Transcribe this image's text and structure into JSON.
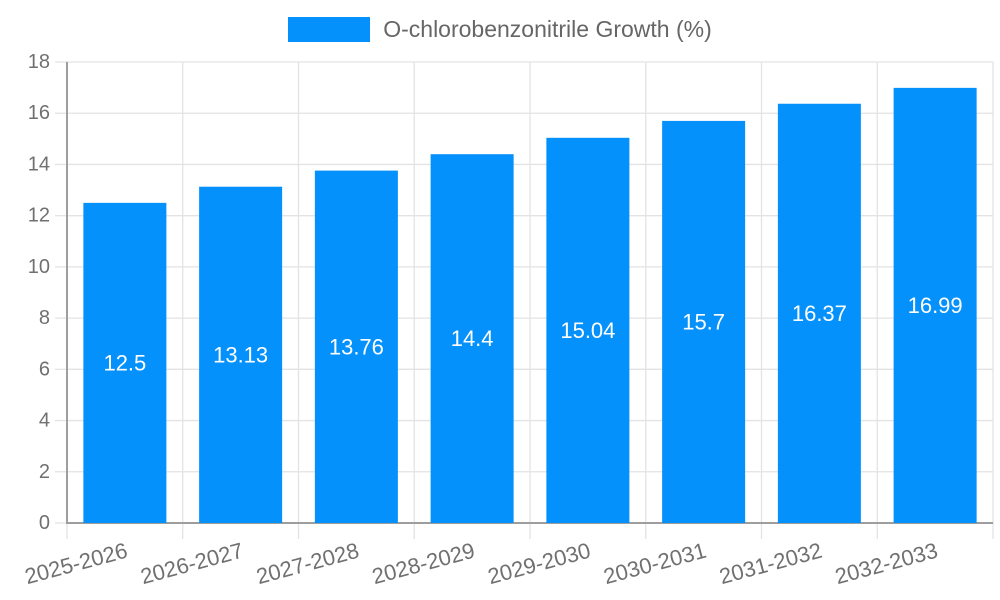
{
  "chart_data": {
    "type": "bar",
    "title": "",
    "xlabel": "",
    "ylabel": "",
    "legend_label": "O-chlorobenzonitrile Growth (%)",
    "legend_position": "top-center",
    "categories": [
      "2025-2026",
      "2026-2027",
      "2027-2028",
      "2028-2029",
      "2029-2030",
      "2030-2031",
      "2031-2032",
      "2032-2033"
    ],
    "values": [
      12.5,
      13.13,
      13.76,
      14.4,
      15.04,
      15.7,
      16.37,
      16.99
    ],
    "value_labels": [
      "12.5",
      "13.13",
      "13.76",
      "14.4",
      "15.04",
      "15.7",
      "16.37",
      "16.99"
    ],
    "ylim": [
      0,
      18
    ],
    "yticks": [
      0,
      2,
      4,
      6,
      8,
      10,
      12,
      14,
      16,
      18
    ],
    "x_label_rotation_deg": -15,
    "grid": "on",
    "colors": {
      "bar": "#0591fb",
      "grid": "#e3e3e3",
      "axis": "#9e9e9e",
      "tick_label": "#707070",
      "legend_text": "#666666",
      "value_label": "#ffffff",
      "background": "#ffffff"
    }
  }
}
